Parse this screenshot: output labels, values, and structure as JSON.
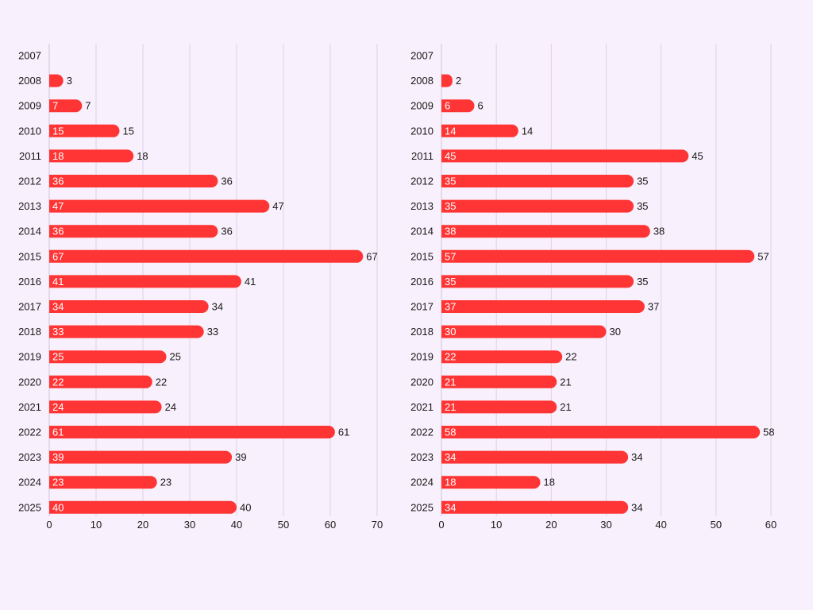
{
  "chart_data": [
    {
      "type": "bar",
      "orientation": "horizontal",
      "title": "",
      "xlabel": "",
      "ylabel": "",
      "xlim": [
        0,
        70
      ],
      "x_ticks": [
        0,
        10,
        20,
        30,
        40,
        50,
        60,
        70
      ],
      "grid": "vertical",
      "categories": [
        "2007",
        "2008",
        "2009",
        "2010",
        "2011",
        "2012",
        "2013",
        "2014",
        "2015",
        "2016",
        "2017",
        "2018",
        "2019",
        "2020",
        "2021",
        "2022",
        "2023",
        "2024",
        "2025"
      ],
      "values": [
        0,
        3,
        7,
        15,
        18,
        36,
        47,
        36,
        67,
        41,
        34,
        33,
        25,
        22,
        24,
        61,
        39,
        23,
        40
      ]
    },
    {
      "type": "bar",
      "orientation": "horizontal",
      "title": "",
      "xlabel": "",
      "ylabel": "",
      "xlim": [
        0,
        60
      ],
      "x_ticks": [
        0,
        10,
        20,
        30,
        40,
        50,
        60
      ],
      "grid": "vertical",
      "categories": [
        "2007",
        "2008",
        "2009",
        "2010",
        "2011",
        "2012",
        "2013",
        "2014",
        "2015",
        "2016",
        "2017",
        "2018",
        "2019",
        "2020",
        "2021",
        "2022",
        "2023",
        "2024",
        "2025"
      ],
      "values": [
        0,
        2,
        6,
        14,
        45,
        35,
        35,
        38,
        57,
        35,
        37,
        30,
        22,
        21,
        21,
        58,
        34,
        18,
        34
      ]
    }
  ],
  "colors": {
    "bar": "#ff3535",
    "grid": "#dcd2e6",
    "axis": "#cfc4da",
    "text": "#1a1a1a",
    "inbar_text": "#ffffff",
    "background": "#f8f0fc"
  }
}
